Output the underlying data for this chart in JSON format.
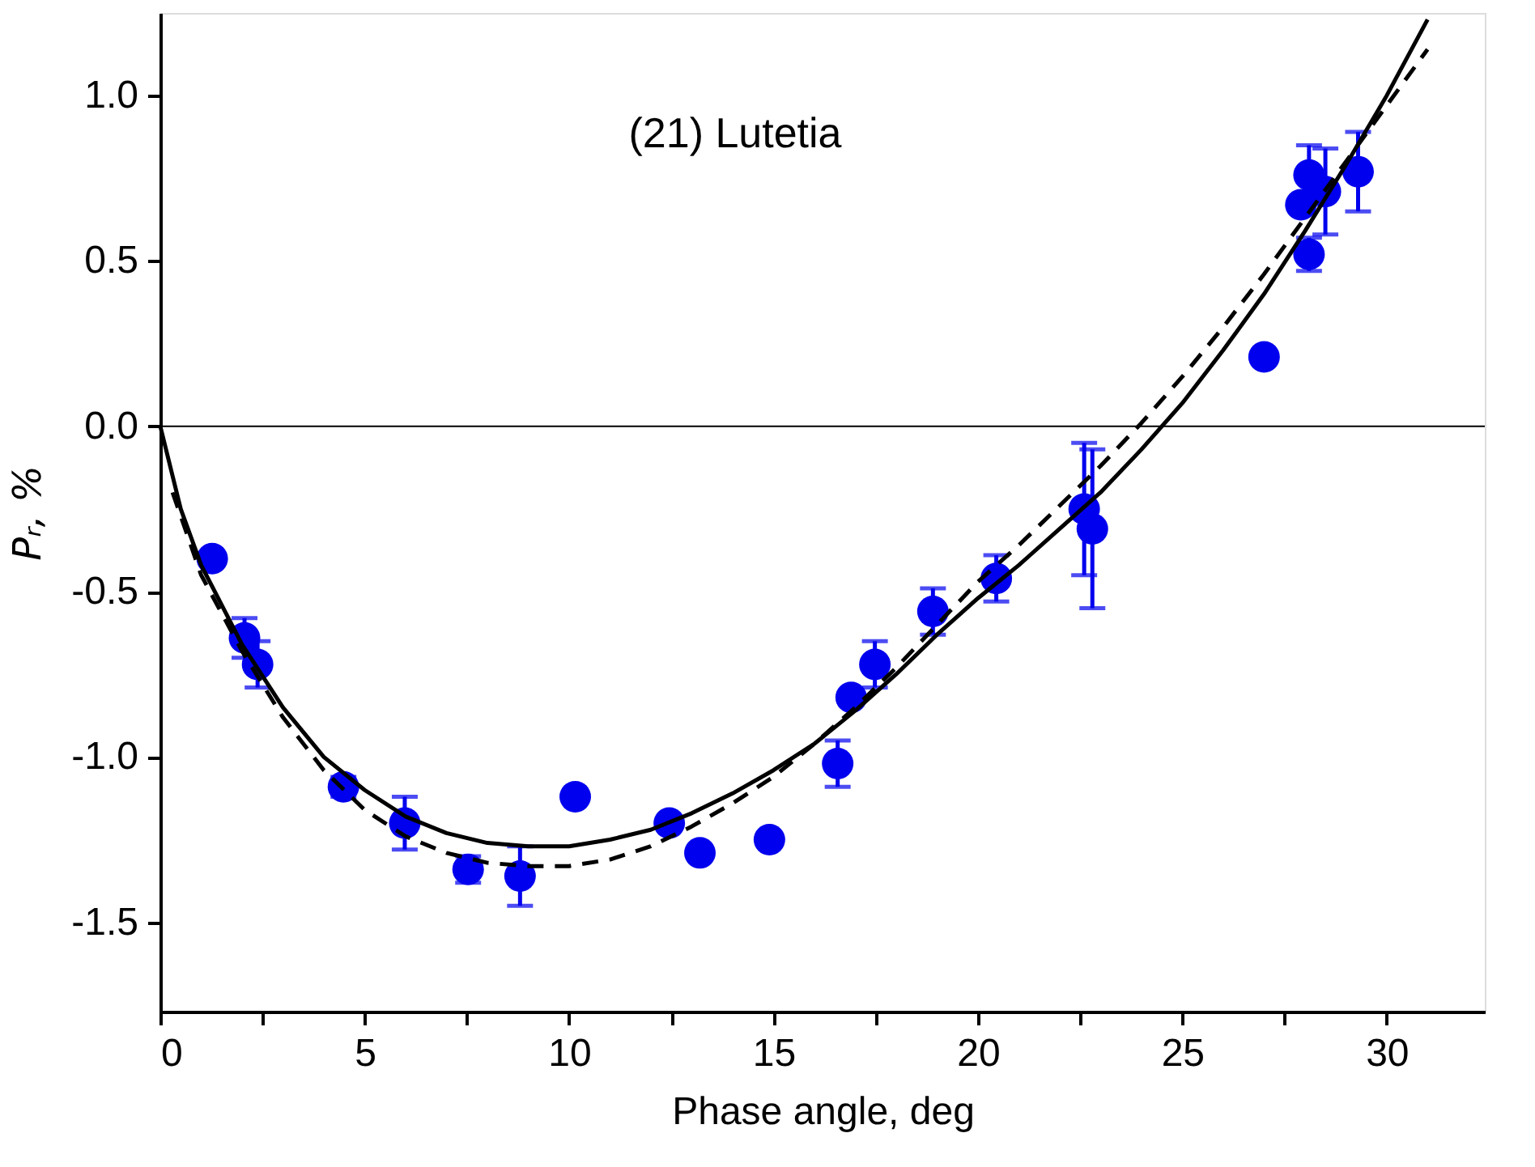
{
  "chart_data": {
    "type": "scatter",
    "xlabel": "Phase angle, deg",
    "ylabel": "Pᵣ, %",
    "annotations": [
      "(21) Lutetia"
    ],
    "xlim": [
      0,
      32.4
    ],
    "ylim": [
      -1.77,
      1.25
    ],
    "xticks": [
      0,
      {
        "value": 2.5,
        "label": null
      },
      5,
      {
        "value": 7.5,
        "label": null
      },
      10,
      {
        "value": 12.5,
        "label": null
      },
      15,
      {
        "value": 17.5,
        "label": null
      },
      20,
      {
        "value": 22.5,
        "label": null
      },
      25,
      {
        "value": 27.5,
        "label": null
      },
      30
    ],
    "yticks": [
      {
        "value": -1.5,
        "label": "-1.5"
      },
      {
        "value": -1.0,
        "label": "-1.0"
      },
      {
        "value": -0.5,
        "label": "-0.5"
      },
      {
        "value": 0,
        "label": "0.0"
      },
      {
        "value": 0.5,
        "label": "0.5"
      },
      {
        "value": 1.0,
        "label": "1.0"
      }
    ],
    "grid": false,
    "ref_lines": [
      {
        "axis": "y",
        "value": 0,
        "label": null,
        "color": "#000000"
      }
    ],
    "series": [
      {
        "color": "#0000ee",
        "marker": "circle",
        "x": [
          1.27,
          2.06,
          2.38,
          4.48,
          5.98,
          7.53,
          8.8,
          10.15,
          12.45,
          13.2,
          14.9,
          16.57,
          16.9,
          17.48,
          18.9,
          20.45,
          22.6,
          22.8,
          27.0,
          27.9,
          28.1,
          28.1,
          28.5,
          29.3
        ],
        "values": [
          -0.4,
          -0.64,
          -0.72,
          -1.09,
          -1.2,
          -1.34,
          -1.36,
          -1.12,
          -1.2,
          -1.29,
          -1.25,
          -1.02,
          -0.82,
          -0.72,
          -0.56,
          -0.46,
          -0.25,
          -0.31,
          0.21,
          0.67,
          0.76,
          0.52,
          0.71,
          0.77
        ],
        "errors": [
          null,
          0.06,
          0.07,
          0.03,
          0.08,
          0.04,
          0.09,
          null,
          null,
          null,
          null,
          0.07,
          null,
          0.07,
          0.07,
          0.07,
          0.2,
          0.24,
          null,
          null,
          0.09,
          0.05,
          0.13,
          0.12
        ]
      },
      {
        "type": "line",
        "color": "#000000",
        "line_style": "solid",
        "marker": "none",
        "x": [
          0,
          0.5,
          1,
          2,
          3,
          4,
          5,
          6,
          7,
          8,
          9,
          10,
          11,
          12,
          13,
          14,
          15,
          16,
          17,
          18,
          19,
          20,
          21,
          22,
          23,
          24,
          25,
          26,
          27,
          28,
          29,
          30,
          31
        ],
        "values": [
          0,
          -0.25,
          -0.42,
          -0.66,
          -0.85,
          -1.0,
          -1.1,
          -1.18,
          -1.23,
          -1.26,
          -1.27,
          -1.27,
          -1.25,
          -1.22,
          -1.17,
          -1.11,
          -1.04,
          -0.96,
          -0.86,
          -0.75,
          -0.63,
          -0.52,
          -0.42,
          -0.31,
          -0.2,
          -0.07,
          0.07,
          0.23,
          0.4,
          0.59,
          0.79,
          1.0,
          1.23
        ]
      },
      {
        "type": "line",
        "color": "#000000",
        "line_style": "dashed",
        "marker": "none",
        "x": [
          0.3,
          1,
          2,
          3,
          4,
          5,
          6,
          7,
          8,
          9,
          10,
          11,
          12,
          13,
          14,
          15,
          16,
          17,
          18,
          19,
          20,
          21,
          22,
          23,
          24,
          25,
          26,
          27,
          28,
          29,
          30,
          31
        ],
        "values": [
          -0.2,
          -0.45,
          -0.68,
          -0.88,
          -1.04,
          -1.16,
          -1.24,
          -1.29,
          -1.32,
          -1.33,
          -1.33,
          -1.31,
          -1.27,
          -1.21,
          -1.14,
          -1.06,
          -0.96,
          -0.85,
          -0.73,
          -0.6,
          -0.47,
          -0.36,
          -0.24,
          -0.12,
          0.01,
          0.15,
          0.3,
          0.46,
          0.63,
          0.8,
          0.97,
          1.14
        ]
      }
    ]
  }
}
